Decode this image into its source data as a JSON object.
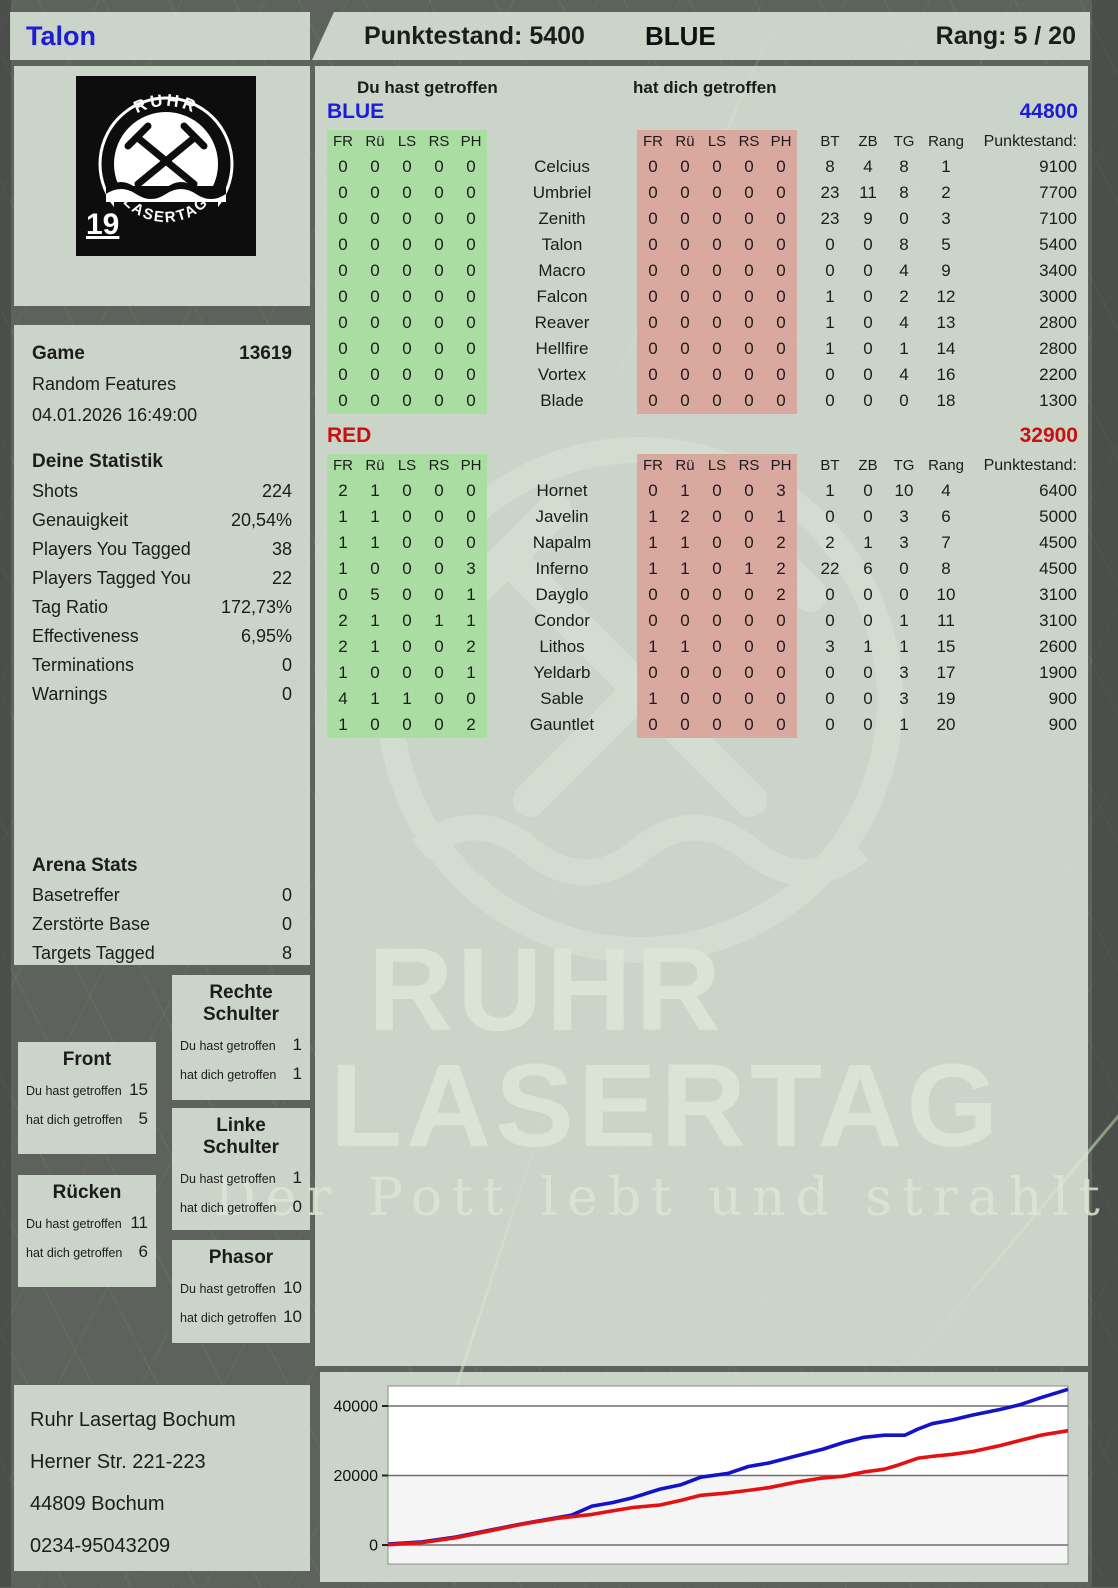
{
  "header": {
    "player_name": "Talon",
    "score_label": "Punktestand:",
    "score": "5400",
    "team": "BLUE",
    "rank_label": "Rang:",
    "rank": "5 / 20"
  },
  "logo": {
    "arc_top": "RUHR",
    "arc_bottom": "LASERTAG",
    "badge": "19"
  },
  "game": {
    "label": "Game",
    "number": "13619",
    "mode": "Random Features",
    "datetime": "04.01.2026 16:49:00"
  },
  "your_stats": {
    "title": "Deine Statistik",
    "rows": [
      {
        "label": "Shots",
        "value": "224"
      },
      {
        "label": "Genauigkeit",
        "value": "20,54%"
      },
      {
        "label": "Players You Tagged",
        "value": "38"
      },
      {
        "label": "Players Tagged You",
        "value": "22"
      },
      {
        "label": "Tag Ratio",
        "value": "172,73%"
      },
      {
        "label": "Effectiveness",
        "value": "6,95%"
      },
      {
        "label": "Terminations",
        "value": "0"
      },
      {
        "label": "Warnings",
        "value": "0"
      }
    ]
  },
  "arena_stats": {
    "title": "Arena Stats",
    "rows": [
      {
        "label": "Basetreffer",
        "value": "0"
      },
      {
        "label": "Zerstörte Base",
        "value": "0"
      },
      {
        "label": "Targets Tagged",
        "value": "8"
      }
    ]
  },
  "hit_zones": {
    "you_label": "Du hast getroffen",
    "them_label": "hat dich getroffen",
    "zones": [
      {
        "id": "rechte-schulter",
        "title": "Rechte Schulter",
        "you": "1",
        "them": "1"
      },
      {
        "id": "front",
        "title": "Front",
        "you": "15",
        "them": "5"
      },
      {
        "id": "linke-schulter",
        "title": "Linke Schulter",
        "you": "1",
        "them": "0"
      },
      {
        "id": "ruecken",
        "title": "Rücken",
        "you": "11",
        "them": "6"
      },
      {
        "id": "phasor",
        "title": "Phasor",
        "you": "10",
        "them": "10"
      }
    ]
  },
  "scoreboard": {
    "you_hit_label": "Du hast getroffen",
    "them_hit_label": "hat dich getroffen",
    "hit_cols": [
      "FR",
      "Rü",
      "LS",
      "RS",
      "PH"
    ],
    "stat_cols": [
      "BT",
      "ZB",
      "TG",
      "Rang",
      "Punktestand:"
    ],
    "teams": [
      {
        "name": "BLUE",
        "total": "44800",
        "players": [
          {
            "name": "Celcius",
            "you": [
              "0",
              "0",
              "0",
              "0",
              "0"
            ],
            "them": [
              "0",
              "0",
              "0",
              "0",
              "0"
            ],
            "stats": [
              "8",
              "4",
              "8",
              "1",
              "9100"
            ]
          },
          {
            "name": "Umbriel",
            "you": [
              "0",
              "0",
              "0",
              "0",
              "0"
            ],
            "them": [
              "0",
              "0",
              "0",
              "0",
              "0"
            ],
            "stats": [
              "23",
              "11",
              "8",
              "2",
              "7700"
            ]
          },
          {
            "name": "Zenith",
            "you": [
              "0",
              "0",
              "0",
              "0",
              "0"
            ],
            "them": [
              "0",
              "0",
              "0",
              "0",
              "0"
            ],
            "stats": [
              "23",
              "9",
              "0",
              "3",
              "7100"
            ]
          },
          {
            "name": "Talon",
            "you": [
              "0",
              "0",
              "0",
              "0",
              "0"
            ],
            "them": [
              "0",
              "0",
              "0",
              "0",
              "0"
            ],
            "stats": [
              "0",
              "0",
              "8",
              "5",
              "5400"
            ]
          },
          {
            "name": "Macro",
            "you": [
              "0",
              "0",
              "0",
              "0",
              "0"
            ],
            "them": [
              "0",
              "0",
              "0",
              "0",
              "0"
            ],
            "stats": [
              "0",
              "0",
              "4",
              "9",
              "3400"
            ]
          },
          {
            "name": "Falcon",
            "you": [
              "0",
              "0",
              "0",
              "0",
              "0"
            ],
            "them": [
              "0",
              "0",
              "0",
              "0",
              "0"
            ],
            "stats": [
              "1",
              "0",
              "2",
              "12",
              "3000"
            ]
          },
          {
            "name": "Reaver",
            "you": [
              "0",
              "0",
              "0",
              "0",
              "0"
            ],
            "them": [
              "0",
              "0",
              "0",
              "0",
              "0"
            ],
            "stats": [
              "1",
              "0",
              "4",
              "13",
              "2800"
            ]
          },
          {
            "name": "Hellfire",
            "you": [
              "0",
              "0",
              "0",
              "0",
              "0"
            ],
            "them": [
              "0",
              "0",
              "0",
              "0",
              "0"
            ],
            "stats": [
              "1",
              "0",
              "1",
              "14",
              "2800"
            ]
          },
          {
            "name": "Vortex",
            "you": [
              "0",
              "0",
              "0",
              "0",
              "0"
            ],
            "them": [
              "0",
              "0",
              "0",
              "0",
              "0"
            ],
            "stats": [
              "0",
              "0",
              "4",
              "16",
              "2200"
            ]
          },
          {
            "name": "Blade",
            "you": [
              "0",
              "0",
              "0",
              "0",
              "0"
            ],
            "them": [
              "0",
              "0",
              "0",
              "0",
              "0"
            ],
            "stats": [
              "0",
              "0",
              "0",
              "18",
              "1300"
            ]
          }
        ]
      },
      {
        "name": "RED",
        "total": "32900",
        "players": [
          {
            "name": "Hornet",
            "you": [
              "2",
              "1",
              "0",
              "0",
              "0"
            ],
            "them": [
              "0",
              "1",
              "0",
              "0",
              "3"
            ],
            "stats": [
              "1",
              "0",
              "10",
              "4",
              "6400"
            ]
          },
          {
            "name": "Javelin",
            "you": [
              "1",
              "1",
              "0",
              "0",
              "0"
            ],
            "them": [
              "1",
              "2",
              "0",
              "0",
              "1"
            ],
            "stats": [
              "0",
              "0",
              "3",
              "6",
              "5000"
            ]
          },
          {
            "name": "Napalm",
            "you": [
              "1",
              "1",
              "0",
              "0",
              "0"
            ],
            "them": [
              "1",
              "1",
              "0",
              "0",
              "2"
            ],
            "stats": [
              "2",
              "1",
              "3",
              "7",
              "4500"
            ]
          },
          {
            "name": "Inferno",
            "you": [
              "1",
              "0",
              "0",
              "0",
              "3"
            ],
            "them": [
              "1",
              "1",
              "0",
              "1",
              "2"
            ],
            "stats": [
              "22",
              "6",
              "0",
              "8",
              "4500"
            ]
          },
          {
            "name": "Dayglo",
            "you": [
              "0",
              "5",
              "0",
              "0",
              "1"
            ],
            "them": [
              "0",
              "0",
              "0",
              "0",
              "2"
            ],
            "stats": [
              "0",
              "0",
              "0",
              "10",
              "3100"
            ]
          },
          {
            "name": "Condor",
            "you": [
              "2",
              "1",
              "0",
              "1",
              "1"
            ],
            "them": [
              "0",
              "0",
              "0",
              "0",
              "0"
            ],
            "stats": [
              "0",
              "0",
              "1",
              "11",
              "3100"
            ]
          },
          {
            "name": "Lithos",
            "you": [
              "2",
              "1",
              "0",
              "0",
              "2"
            ],
            "them": [
              "1",
              "1",
              "0",
              "0",
              "0"
            ],
            "stats": [
              "3",
              "1",
              "1",
              "15",
              "2600"
            ]
          },
          {
            "name": "Yeldarb",
            "you": [
              "1",
              "0",
              "0",
              "0",
              "1"
            ],
            "them": [
              "0",
              "0",
              "0",
              "0",
              "0"
            ],
            "stats": [
              "0",
              "0",
              "3",
              "17",
              "1900"
            ]
          },
          {
            "name": "Sable",
            "you": [
              "4",
              "1",
              "1",
              "0",
              "0"
            ],
            "them": [
              "1",
              "0",
              "0",
              "0",
              "0"
            ],
            "stats": [
              "0",
              "0",
              "3",
              "19",
              "900"
            ]
          },
          {
            "name": "Gauntlet",
            "you": [
              "1",
              "0",
              "0",
              "0",
              "2"
            ],
            "them": [
              "0",
              "0",
              "0",
              "0",
              "0"
            ],
            "stats": [
              "0",
              "0",
              "1",
              "20",
              "900"
            ]
          }
        ]
      }
    ]
  },
  "watermark": {
    "line1": "RUHR",
    "line2": "LASERTAG",
    "tagline": "Der Pott lebt und strahlt"
  },
  "footer": {
    "lines": [
      "Ruhr Lasertag Bochum",
      "Herner Str. 221-223",
      "44809 Bochum",
      "0234-95043209"
    ]
  },
  "colors": {
    "blue_team": "#1d1dd6",
    "red_team": "#c8100f",
    "you_hit_cell": "#a9dda1",
    "them_hit_cell": "#d9a89f",
    "chart_blue": "#1313c8",
    "chart_red": "#e31111"
  },
  "chart_data": {
    "type": "line",
    "title": "",
    "xlabel": "",
    "ylabel": "",
    "ylim": [
      0,
      46000
    ],
    "yticks": [
      0,
      20000,
      40000
    ],
    "grid": true,
    "legend": "none",
    "series": [
      {
        "name": "BLUE",
        "color": "#1313c8",
        "points": [
          [
            0,
            300
          ],
          [
            5,
            900
          ],
          [
            10,
            2300
          ],
          [
            15,
            4300
          ],
          [
            20,
            6200
          ],
          [
            25,
            7900
          ],
          [
            27,
            8600
          ],
          [
            30,
            11200
          ],
          [
            33,
            12200
          ],
          [
            36,
            13600
          ],
          [
            40,
            16100
          ],
          [
            43,
            17300
          ],
          [
            46,
            19500
          ],
          [
            50,
            20600
          ],
          [
            53,
            22600
          ],
          [
            56,
            23600
          ],
          [
            60,
            25600
          ],
          [
            64,
            27600
          ],
          [
            67,
            29500
          ],
          [
            70,
            31000
          ],
          [
            73,
            31600
          ],
          [
            76,
            31600
          ],
          [
            78,
            33400
          ],
          [
            80,
            34900
          ],
          [
            83,
            36000
          ],
          [
            86,
            37400
          ],
          [
            90,
            39000
          ],
          [
            93,
            40400
          ],
          [
            96,
            42400
          ],
          [
            100,
            44800
          ]
        ]
      },
      {
        "name": "RED",
        "color": "#e31111",
        "points": [
          [
            0,
            100
          ],
          [
            5,
            700
          ],
          [
            10,
            2100
          ],
          [
            15,
            4100
          ],
          [
            20,
            6100
          ],
          [
            25,
            7700
          ],
          [
            30,
            8800
          ],
          [
            33,
            9800
          ],
          [
            36,
            10800
          ],
          [
            40,
            11500
          ],
          [
            43,
            12800
          ],
          [
            46,
            14300
          ],
          [
            50,
            15000
          ],
          [
            53,
            15700
          ],
          [
            56,
            16500
          ],
          [
            60,
            18100
          ],
          [
            64,
            19300
          ],
          [
            67,
            19800
          ],
          [
            70,
            21000
          ],
          [
            73,
            21800
          ],
          [
            75,
            23000
          ],
          [
            78,
            25000
          ],
          [
            80,
            25500
          ],
          [
            83,
            26100
          ],
          [
            86,
            26900
          ],
          [
            90,
            28600
          ],
          [
            93,
            30100
          ],
          [
            96,
            31600
          ],
          [
            100,
            32900
          ]
        ]
      }
    ]
  }
}
